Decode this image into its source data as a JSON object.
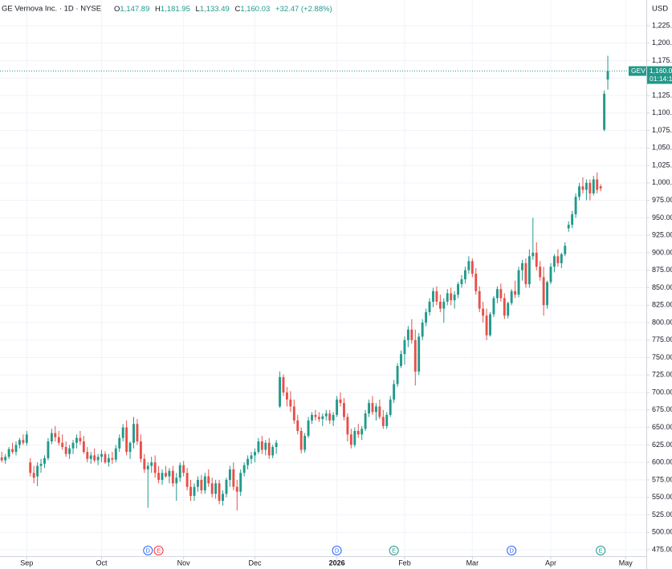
{
  "header": {
    "name": "GE Vernova Inc. · 1D · NYSE",
    "open_label": "O",
    "open": "1,147.89",
    "high_label": "H",
    "high": "1,181.95",
    "low_label": "L",
    "low": "1,133.49",
    "close_label": "C",
    "close": "1,160.03",
    "change": "+32.47 (+2.88%)"
  },
  "currency": "USD",
  "price_tag": {
    "symbol": "GEV",
    "price": "1,160.0",
    "countdown": "01:14:1"
  },
  "chart_data": {
    "type": "candlestick",
    "up_color": "#22998a",
    "down_color": "#e5504a",
    "grid": true,
    "xlim": [
      -0.5,
      180.8
    ],
    "ylim": [
      465.8,
      1261.7
    ],
    "xticks": [
      {
        "value": 7,
        "label": "Sep"
      },
      {
        "value": 28,
        "label": "Oct"
      },
      {
        "value": 51,
        "label": "Nov"
      },
      {
        "value": 71,
        "label": "Dec"
      },
      {
        "value": 94,
        "label": "2026"
      },
      {
        "value": 113,
        "label": "Feb"
      },
      {
        "value": 132,
        "label": "Mar"
      },
      {
        "value": 154,
        "label": "Apr"
      },
      {
        "value": 175,
        "label": "May"
      }
    ],
    "yticks": [
      {
        "value": 475,
        "label": "475.00"
      },
      {
        "value": 500,
        "label": "500.00"
      },
      {
        "value": 525,
        "label": "525.00"
      },
      {
        "value": 550,
        "label": "550.00"
      },
      {
        "value": 575,
        "label": "575.00"
      },
      {
        "value": 600,
        "label": "600.00"
      },
      {
        "value": 625,
        "label": "625.00"
      },
      {
        "value": 650,
        "label": "650.00"
      },
      {
        "value": 675,
        "label": "675.00"
      },
      {
        "value": 700,
        "label": "700.00"
      },
      {
        "value": 725,
        "label": "725.00"
      },
      {
        "value": 750,
        "label": "750.00"
      },
      {
        "value": 775,
        "label": "775.00"
      },
      {
        "value": 800,
        "label": "800.00"
      },
      {
        "value": 825,
        "label": "825.00"
      },
      {
        "value": 850,
        "label": "850.00"
      },
      {
        "value": 875,
        "label": "875.00"
      },
      {
        "value": 900,
        "label": "900.00"
      },
      {
        "value": 925,
        "label": "925.00"
      },
      {
        "value": 950,
        "label": "950.00"
      },
      {
        "value": 975,
        "label": "975.00"
      },
      {
        "value": 1000,
        "label": "1,000.0"
      },
      {
        "value": 1025,
        "label": "1,025.0"
      },
      {
        "value": 1050,
        "label": "1,050.0"
      },
      {
        "value": 1075,
        "label": "1,075.0"
      },
      {
        "value": 1100,
        "label": "1,100.0"
      },
      {
        "value": 1125,
        "label": "1,125.0"
      },
      {
        "value": 1150,
        "label": "1,150.0"
      },
      {
        "value": 1175,
        "label": "1,175.0"
      },
      {
        "value": 1200,
        "label": "1,200.0"
      },
      {
        "value": 1225,
        "label": "1,225.0"
      }
    ],
    "events": [
      {
        "index": 41,
        "label": "D",
        "color": "#2962ff"
      },
      {
        "index": 44,
        "label": "E",
        "color": "#f23645"
      },
      {
        "index": 94,
        "label": "D",
        "color": "#2962ff"
      },
      {
        "index": 110,
        "label": "E",
        "color": "#22998a"
      },
      {
        "index": 143,
        "label": "D",
        "color": "#2962ff"
      },
      {
        "index": 168,
        "label": "E",
        "color": "#22998a"
      }
    ],
    "candles": [
      [
        607,
        615,
        600,
        603
      ],
      [
        603,
        612,
        598,
        608
      ],
      [
        608,
        622,
        605,
        619
      ],
      [
        619,
        628,
        612,
        615
      ],
      [
        615,
        630,
        610,
        625
      ],
      [
        625,
        635,
        620,
        632
      ],
      [
        632,
        640,
        625,
        628
      ],
      [
        628,
        645,
        624,
        640
      ],
      [
        600,
        606,
        580,
        585
      ],
      [
        585,
        595,
        570,
        578
      ],
      [
        580,
        600,
        566,
        595
      ],
      [
        595,
        605,
        585,
        598
      ],
      [
        598,
        610,
        592,
        606
      ],
      [
        606,
        635,
        603,
        630
      ],
      [
        630,
        648,
        626,
        642
      ],
      [
        642,
        652,
        630,
        636
      ],
      [
        636,
        645,
        624,
        628
      ],
      [
        628,
        640,
        618,
        622
      ],
      [
        622,
        630,
        608,
        612
      ],
      [
        612,
        625,
        605,
        620
      ],
      [
        620,
        632,
        612,
        628
      ],
      [
        628,
        640,
        620,
        635
      ],
      [
        635,
        645,
        625,
        630
      ],
      [
        630,
        638,
        612,
        615
      ],
      [
        615,
        622,
        600,
        605
      ],
      [
        605,
        615,
        598,
        610
      ],
      [
        610,
        620,
        600,
        603
      ],
      [
        603,
        612,
        596,
        608
      ],
      [
        608,
        618,
        600,
        612
      ],
      [
        612,
        616,
        598,
        600
      ],
      [
        600,
        612,
        594,
        606
      ],
      [
        606,
        615,
        598,
        604
      ],
      [
        604,
        625,
        600,
        620
      ],
      [
        620,
        640,
        615,
        635
      ],
      [
        635,
        655,
        630,
        650
      ],
      [
        650,
        660,
        610,
        615
      ],
      [
        615,
        630,
        605,
        628
      ],
      [
        628,
        665,
        620,
        655
      ],
      [
        655,
        662,
        625,
        630
      ],
      [
        630,
        640,
        600,
        605
      ],
      [
        605,
        612,
        585,
        590
      ],
      [
        590,
        600,
        535,
        595
      ],
      [
        595,
        608,
        585,
        600
      ],
      [
        600,
        610,
        578,
        585
      ],
      [
        585,
        595,
        570,
        575
      ],
      [
        575,
        590,
        568,
        585
      ],
      [
        585,
        595,
        578,
        580
      ],
      [
        580,
        592,
        570,
        588
      ],
      [
        588,
        595,
        565,
        570
      ],
      [
        570,
        585,
        545,
        578
      ],
      [
        578,
        600,
        572,
        596
      ],
      [
        596,
        602,
        580,
        585
      ],
      [
        585,
        592,
        560,
        565
      ],
      [
        565,
        575,
        545,
        552
      ],
      [
        552,
        570,
        545,
        565
      ],
      [
        565,
        580,
        558,
        575
      ],
      [
        575,
        582,
        555,
        560
      ],
      [
        560,
        585,
        555,
        580
      ],
      [
        580,
        590,
        565,
        570
      ],
      [
        570,
        578,
        550,
        555
      ],
      [
        555,
        575,
        548,
        570
      ],
      [
        570,
        575,
        540,
        545
      ],
      [
        545,
        560,
        538,
        555
      ],
      [
        555,
        578,
        550,
        575
      ],
      [
        575,
        595,
        565,
        590
      ],
      [
        590,
        600,
        560,
        565
      ],
      [
        565,
        575,
        531,
        558
      ],
      [
        558,
        590,
        552,
        585
      ],
      [
        585,
        600,
        580,
        596
      ],
      [
        596,
        610,
        590,
        605
      ],
      [
        605,
        615,
        598,
        610
      ],
      [
        610,
        620,
        600,
        615
      ],
      [
        615,
        635,
        612,
        630
      ],
      [
        630,
        638,
        612,
        618
      ],
      [
        618,
        632,
        610,
        628
      ],
      [
        628,
        635,
        605,
        610
      ],
      [
        610,
        625,
        606,
        622
      ],
      [
        622,
        632,
        612,
        628
      ],
      [
        680,
        730,
        678,
        722
      ],
      [
        722,
        726,
        695,
        700
      ],
      [
        700,
        708,
        680,
        690
      ],
      [
        690,
        702,
        672,
        680
      ],
      [
        680,
        690,
        655,
        660
      ],
      [
        660,
        668,
        640,
        645
      ],
      [
        645,
        650,
        613,
        618
      ],
      [
        618,
        642,
        614,
        638
      ],
      [
        638,
        665,
        635,
        660
      ],
      [
        660,
        672,
        655,
        668
      ],
      [
        668,
        675,
        660,
        665
      ],
      [
        665,
        672,
        658,
        662
      ],
      [
        662,
        670,
        652,
        666
      ],
      [
        666,
        675,
        660,
        670
      ],
      [
        670,
        675,
        655,
        660
      ],
      [
        660,
        672,
        652,
        668
      ],
      [
        668,
        695,
        665,
        690
      ],
      [
        690,
        700,
        680,
        685
      ],
      [
        685,
        692,
        660,
        665
      ],
      [
        665,
        670,
        630,
        640
      ],
      [
        640,
        648,
        620,
        625
      ],
      [
        625,
        650,
        622,
        645
      ],
      [
        645,
        655,
        635,
        640
      ],
      [
        640,
        652,
        632,
        648
      ],
      [
        648,
        675,
        645,
        670
      ],
      [
        670,
        690,
        665,
        685
      ],
      [
        685,
        695,
        668,
        672
      ],
      [
        672,
        685,
        660,
        680
      ],
      [
        680,
        690,
        662,
        665
      ],
      [
        665,
        675,
        648,
        652
      ],
      [
        652,
        672,
        648,
        668
      ],
      [
        668,
        695,
        665,
        690
      ],
      [
        690,
        718,
        685,
        712
      ],
      [
        712,
        742,
        708,
        738
      ],
      [
        738,
        760,
        735,
        755
      ],
      [
        755,
        780,
        740,
        775
      ],
      [
        775,
        795,
        765,
        790
      ],
      [
        790,
        805,
        770,
        775
      ],
      [
        775,
        790,
        710,
        730
      ],
      [
        730,
        785,
        725,
        780
      ],
      [
        780,
        805,
        775,
        800
      ],
      [
        800,
        820,
        795,
        815
      ],
      [
        815,
        835,
        810,
        830
      ],
      [
        830,
        850,
        822,
        845
      ],
      [
        845,
        852,
        825,
        830
      ],
      [
        830,
        840,
        815,
        820
      ],
      [
        820,
        835,
        800,
        830
      ],
      [
        830,
        848,
        825,
        842
      ],
      [
        842,
        850,
        825,
        832
      ],
      [
        832,
        845,
        820,
        840
      ],
      [
        840,
        858,
        835,
        855
      ],
      [
        855,
        868,
        850,
        862
      ],
      [
        862,
        880,
        856,
        875
      ],
      [
        875,
        895,
        870,
        888
      ],
      [
        888,
        892,
        865,
        870
      ],
      [
        870,
        878,
        840,
        845
      ],
      [
        845,
        852,
        815,
        820
      ],
      [
        820,
        830,
        800,
        810
      ],
      [
        810,
        820,
        775,
        782
      ],
      [
        782,
        815,
        780,
        812
      ],
      [
        812,
        838,
        808,
        835
      ],
      [
        835,
        852,
        828,
        848
      ],
      [
        848,
        856,
        830,
        835
      ],
      [
        835,
        842,
        805,
        810
      ],
      [
        810,
        830,
        806,
        828
      ],
      [
        828,
        848,
        825,
        845
      ],
      [
        845,
        860,
        835,
        840
      ],
      [
        840,
        880,
        836,
        875
      ],
      [
        875,
        890,
        860,
        885
      ],
      [
        885,
        892,
        850,
        855
      ],
      [
        855,
        905,
        850,
        895
      ],
      [
        895,
        950,
        890,
        900
      ],
      [
        900,
        915,
        875,
        880
      ],
      [
        880,
        888,
        860,
        865
      ],
      [
        865,
        880,
        810,
        825
      ],
      [
        825,
        860,
        820,
        858
      ],
      [
        858,
        885,
        855,
        880
      ],
      [
        880,
        898,
        872,
        895
      ],
      [
        895,
        905,
        880,
        885
      ],
      [
        885,
        900,
        878,
        898
      ],
      [
        898,
        915,
        895,
        910
      ],
      [
        935,
        945,
        930,
        940
      ],
      [
        940,
        960,
        935,
        955
      ],
      [
        955,
        985,
        950,
        980
      ],
      [
        980,
        1000,
        975,
        995
      ],
      [
        995,
        1008,
        985,
        990
      ],
      [
        990,
        1005,
        975,
        1000
      ],
      [
        1000,
        1005,
        975,
        985
      ],
      [
        985,
        1010,
        982,
        1005
      ],
      [
        1005,
        1015,
        985,
        990
      ],
      [
        995,
        998,
        988,
        992
      ],
      [
        1076,
        1132,
        1074,
        1127.56
      ],
      [
        1147.89,
        1181.95,
        1133.49,
        1160.03
      ]
    ]
  }
}
